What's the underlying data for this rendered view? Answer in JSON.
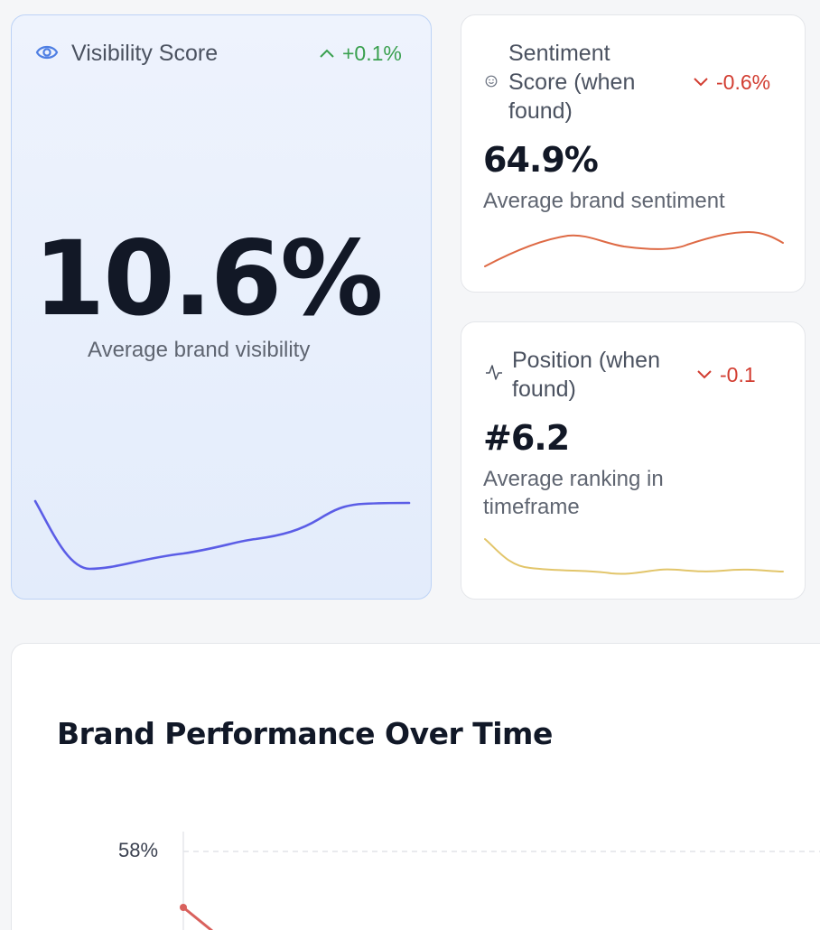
{
  "visibility": {
    "title": "Visibility Score",
    "delta": "+0.1%",
    "value": "10.6%",
    "subtitle": "Average brand visibility",
    "icon": "eye-icon",
    "color": "#5b5de6"
  },
  "sentiment": {
    "title_lines": [
      "Sentiment",
      "Score (when",
      "found)"
    ],
    "delta": "-0.6%",
    "value": "64.9%",
    "subtitle": "Average brand sentiment",
    "icon": "smile-icon",
    "color": "#de6a45"
  },
  "position": {
    "title_lines": [
      "Position (when",
      "found)"
    ],
    "delta": "-0.1",
    "value": "#6.2",
    "subtitle_lines": [
      "Average ranking in",
      "timeframe"
    ],
    "icon": "activity-icon",
    "color": "#e2c56a"
  },
  "performance": {
    "title": "Brand Performance Over Time",
    "y_tick": "58%",
    "series_color": "#d9615d"
  }
}
